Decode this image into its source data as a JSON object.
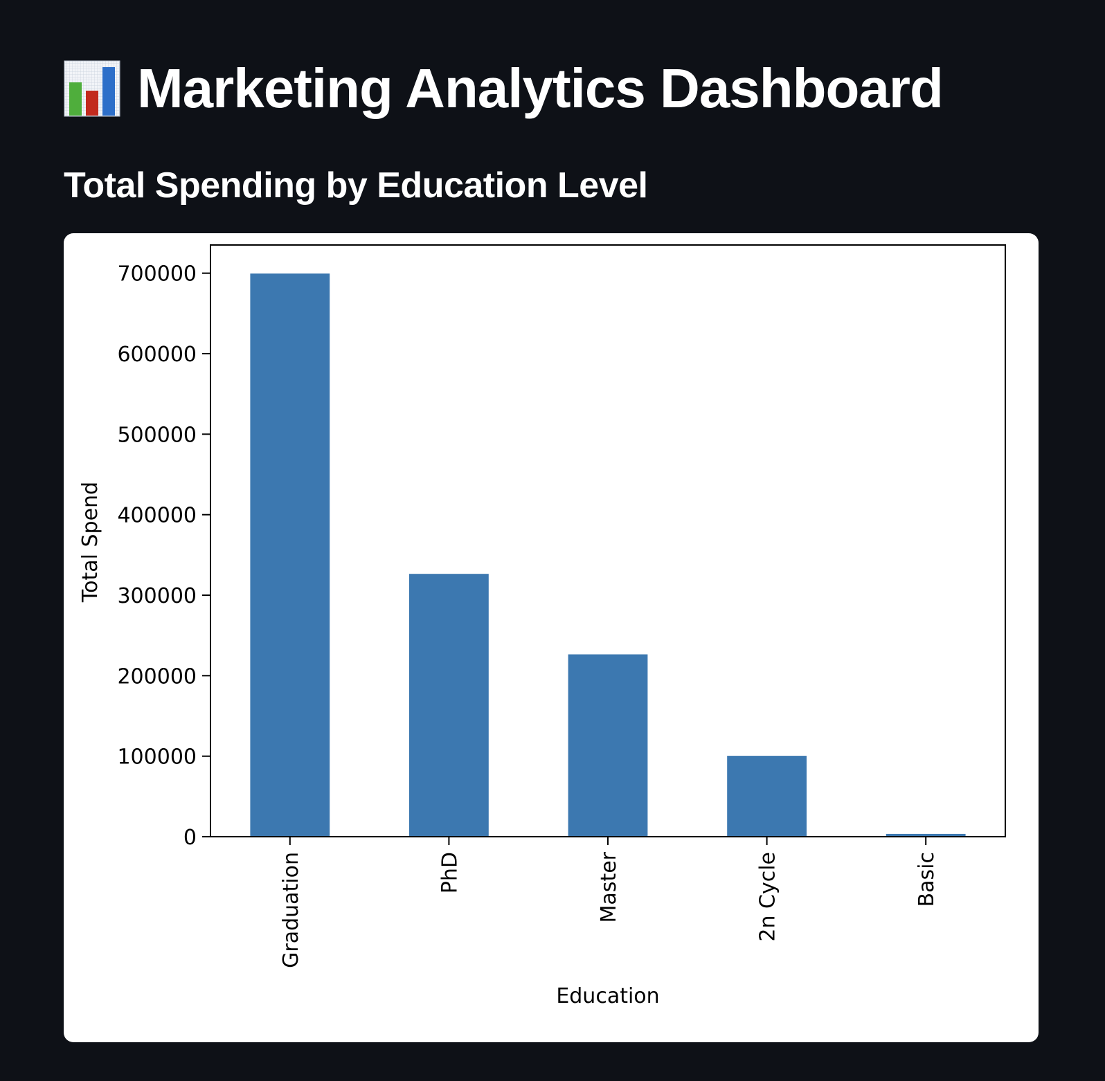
{
  "page": {
    "title": "Marketing Analytics Dashboard",
    "title_icon": "bar-chart-icon",
    "section_title": "Total Spending by Education Level"
  },
  "colors": {
    "background": "#0e1117",
    "bar": "#3c78b0",
    "icon_bars": [
      "#4fae3c",
      "#c22a1e",
      "#2d6fc9"
    ]
  },
  "chart_data": {
    "type": "bar",
    "title": "",
    "xlabel": "Education",
    "ylabel": "Total Spend",
    "categories": [
      "Graduation",
      "PhD",
      "Master",
      "2n Cycle",
      "Basic"
    ],
    "values": [
      699500,
      326500,
      226500,
      100500,
      3500
    ],
    "ylim": [
      0,
      735000
    ],
    "yticks": [
      0,
      100000,
      200000,
      300000,
      400000,
      500000,
      600000,
      700000
    ],
    "ytick_labels": [
      "0",
      "100000",
      "200000",
      "300000",
      "400000",
      "500000",
      "600000",
      "700000"
    ],
    "xtick_rotation": "vertical",
    "grid": false,
    "legend": "none"
  }
}
